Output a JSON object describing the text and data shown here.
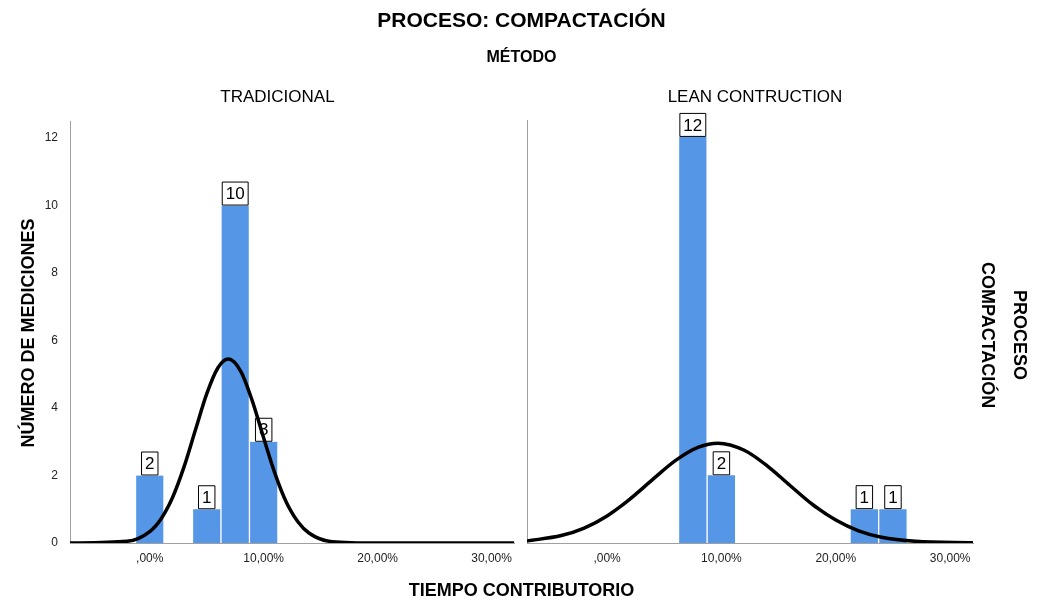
{
  "chart_data": [
    {
      "type": "histogram",
      "title": "TRADICIONAL",
      "annotations": [
        "PROCESO: COMPACTACIÓN",
        "MÉTODO"
      ],
      "xlabel": "TIEMPO CONTRIBUTORIO",
      "ylabel": "NÚMERO DE MEDICIONES",
      "bins": [
        -1.25,
        1.25,
        3.75,
        6.25,
        8.75,
        11.25
      ],
      "series": [
        {
          "type": "histogram",
          "color": "#5596e6",
          "values": [
            2,
            0,
            1,
            10,
            3
          ],
          "value_labels": [
            "2",
            null,
            "1",
            "10",
            "3"
          ]
        },
        {
          "type": "line",
          "color": "#000000",
          "x": [
            -7,
            -2,
            0,
            1,
            2,
            3,
            4,
            5,
            6,
            6.9,
            8,
            9,
            10,
            11,
            12,
            13,
            14,
            16,
            20,
            32
          ],
          "values": [
            0,
            0.05,
            0.34,
            0.72,
            1.35,
            2.25,
            3.34,
            4.42,
            5.2,
            5.45,
            5.08,
            4.21,
            3.11,
            2.05,
            1.2,
            0.63,
            0.29,
            0.04,
            0,
            0
          ]
        }
      ],
      "xlim": [
        -7,
        32
      ],
      "xticks": [
        {
          "value": 0,
          "label": ",00%"
        },
        {
          "value": 10,
          "label": "10,00%"
        },
        {
          "value": 20,
          "label": "20,00%"
        },
        {
          "value": 30,
          "label": "30,00%"
        }
      ],
      "ylim": [
        0,
        12.5
      ],
      "yticks": [
        0,
        2,
        4,
        6,
        8,
        10,
        12
      ]
    },
    {
      "type": "histogram",
      "title": "LEAN CONTRUCTION",
      "y2label": "PROCESO COMPACTACIÓN",
      "bins": [
        6.25,
        8.75,
        11.25,
        13.75,
        16.25,
        18.75,
        21.25,
        23.75,
        26.25
      ],
      "series": [
        {
          "type": "histogram",
          "color": "#5596e6",
          "values": [
            12,
            2,
            0,
            0,
            0,
            0,
            1,
            1
          ],
          "value_labels": [
            "12",
            "2",
            null,
            null,
            null,
            null,
            "1",
            "1"
          ]
        },
        {
          "type": "line",
          "color": "#000000",
          "x": [
            -7,
            -4,
            -2,
            0,
            2,
            4,
            6,
            8,
            9.7,
            12,
            14,
            16,
            18,
            20,
            22,
            24,
            27,
            32
          ],
          "values": [
            0.06,
            0.22,
            0.44,
            0.8,
            1.3,
            1.88,
            2.44,
            2.83,
            2.95,
            2.74,
            2.28,
            1.7,
            1.13,
            0.68,
            0.36,
            0.17,
            0.05,
            0.01
          ]
        }
      ],
      "xlim": [
        -7,
        32
      ],
      "xticks": [
        {
          "value": 0,
          "label": ",00%"
        },
        {
          "value": 10,
          "label": "10,00%"
        },
        {
          "value": 20,
          "label": "20,00%"
        },
        {
          "value": 30,
          "label": "30,00%"
        }
      ],
      "ylim": [
        0,
        12.5
      ],
      "yticks": [
        0,
        2,
        4,
        6,
        8,
        10,
        12
      ],
      "tick_labels": "x"
    }
  ]
}
